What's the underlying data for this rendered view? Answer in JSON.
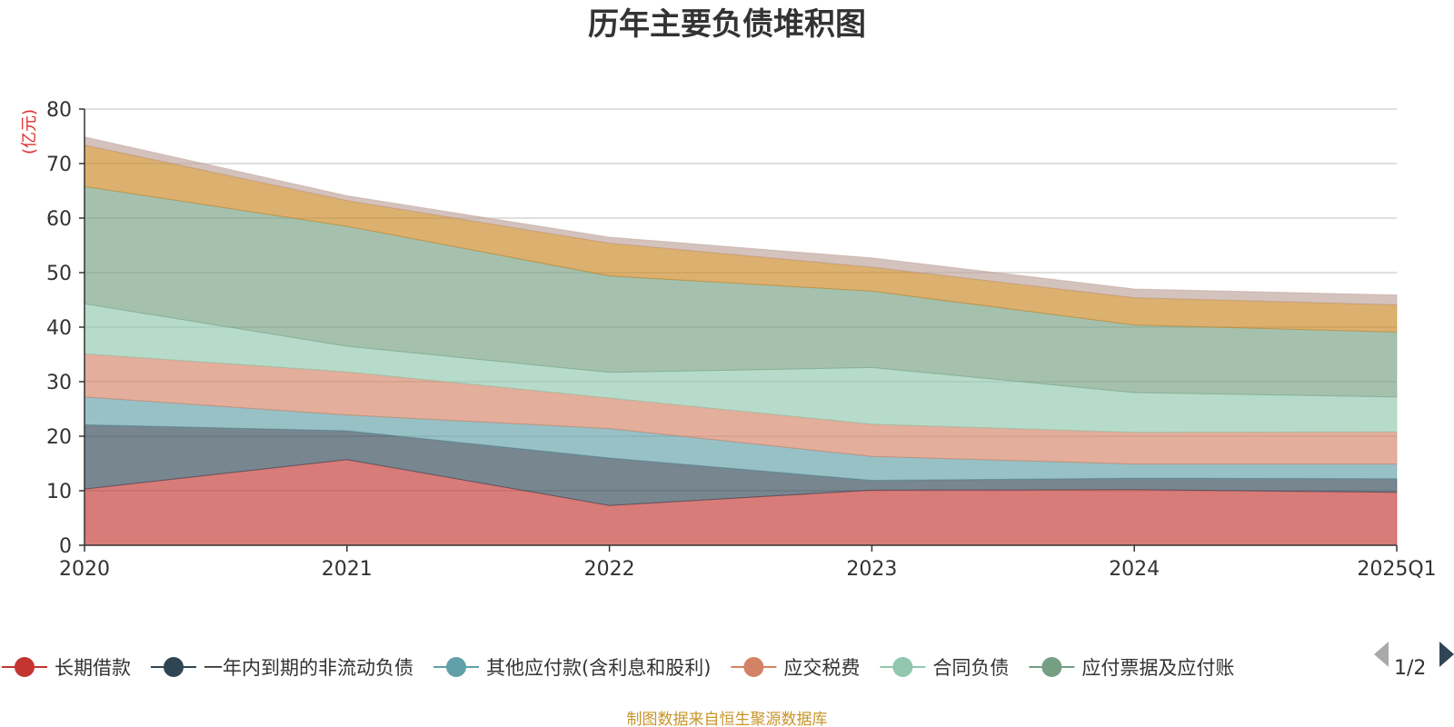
{
  "chart_data": {
    "type": "area",
    "stacked": true,
    "title": "历年主要负债堆积图",
    "unit_label": "(亿元)",
    "x": [
      "2020",
      "2021",
      "2022",
      "2023",
      "2024",
      "2025Q1"
    ],
    "ylim": [
      0,
      80
    ],
    "yticks": [
      0,
      10,
      20,
      30,
      40,
      50,
      60,
      70,
      80
    ],
    "grid": true,
    "legend_position": "bottom",
    "series": [
      {
        "name": "长期借款",
        "color": "#c23531",
        "values": [
          10.3,
          15.7,
          7.3,
          10.1,
          10.2,
          9.7
        ]
      },
      {
        "name": "一年内到期的非流动负债",
        "color": "#2f4554",
        "values": [
          11.8,
          5.3,
          8.7,
          1.8,
          2.1,
          2.5
        ]
      },
      {
        "name": "其他应付款(含利息和股利)",
        "color": "#61a0a8",
        "values": [
          5.1,
          2.9,
          5.4,
          4.4,
          2.6,
          2.7
        ]
      },
      {
        "name": "应交税费",
        "color": "#d48265",
        "values": [
          7.9,
          7.9,
          5.6,
          5.9,
          5.8,
          5.9
        ]
      },
      {
        "name": "合同负债",
        "color": "#91c7ae",
        "values": [
          9.2,
          4.7,
          4.7,
          10.4,
          7.3,
          6.4
        ]
      },
      {
        "name": "应付票据及应付账款",
        "color": "#749f83",
        "values": [
          21.5,
          22.0,
          17.7,
          14.0,
          12.4,
          11.9
        ]
      },
      {
        "name": "",
        "color": "#ca8622",
        "values": [
          7.6,
          4.7,
          6.0,
          4.4,
          5.0,
          5.0
        ]
      },
      {
        "name": "",
        "color": "#bda29a",
        "values": [
          1.5,
          0.9,
          1.1,
          1.7,
          1.6,
          1.8
        ]
      }
    ]
  },
  "legend": {
    "visible_items": [
      {
        "label": "长期借款",
        "color": "#c23531"
      },
      {
        "label": "一年内到期的非流动负债",
        "color": "#2f4554"
      },
      {
        "label": "其他应付款(含利息和股利)",
        "color": "#61a0a8"
      },
      {
        "label": "应交税费",
        "color": "#d48265"
      },
      {
        "label": "合同负债",
        "color": "#91c7ae"
      },
      {
        "label": "应付票据及应付账",
        "color": "#749f83"
      }
    ],
    "page_indicator": "1/2"
  },
  "source_note": "制图数据来自恒生聚源数据库"
}
